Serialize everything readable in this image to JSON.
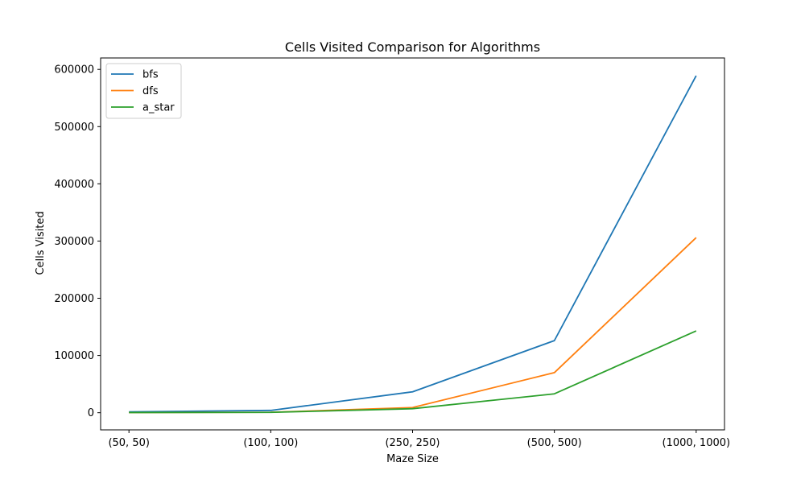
{
  "chart_data": {
    "type": "line",
    "title": "Cells Visited Comparison for Algorithms",
    "xlabel": "Maze Size",
    "ylabel": "Cells Visited",
    "categories": [
      "(50, 50)",
      "(100, 100)",
      "(250, 250)",
      "(500, 500)",
      "(1000, 1000)"
    ],
    "ylim": [
      -30000,
      620000
    ],
    "yticks": [
      0,
      100000,
      200000,
      300000,
      400000,
      500000,
      600000
    ],
    "ytick_labels": [
      "0",
      "100000",
      "200000",
      "300000",
      "400000",
      "500000",
      "600000"
    ],
    "grid": false,
    "legend_position": "top-left",
    "series": [
      {
        "name": "bfs",
        "color": "#1f77b4",
        "values": [
          1500,
          4000,
          36500,
          126000,
          589000
        ]
      },
      {
        "name": "dfs",
        "color": "#ff7f0e",
        "values": [
          300,
          800,
          9000,
          70000,
          306000
        ]
      },
      {
        "name": "a_star",
        "color": "#2ca02c",
        "values": [
          300,
          600,
          7000,
          33000,
          143000
        ]
      }
    ]
  }
}
